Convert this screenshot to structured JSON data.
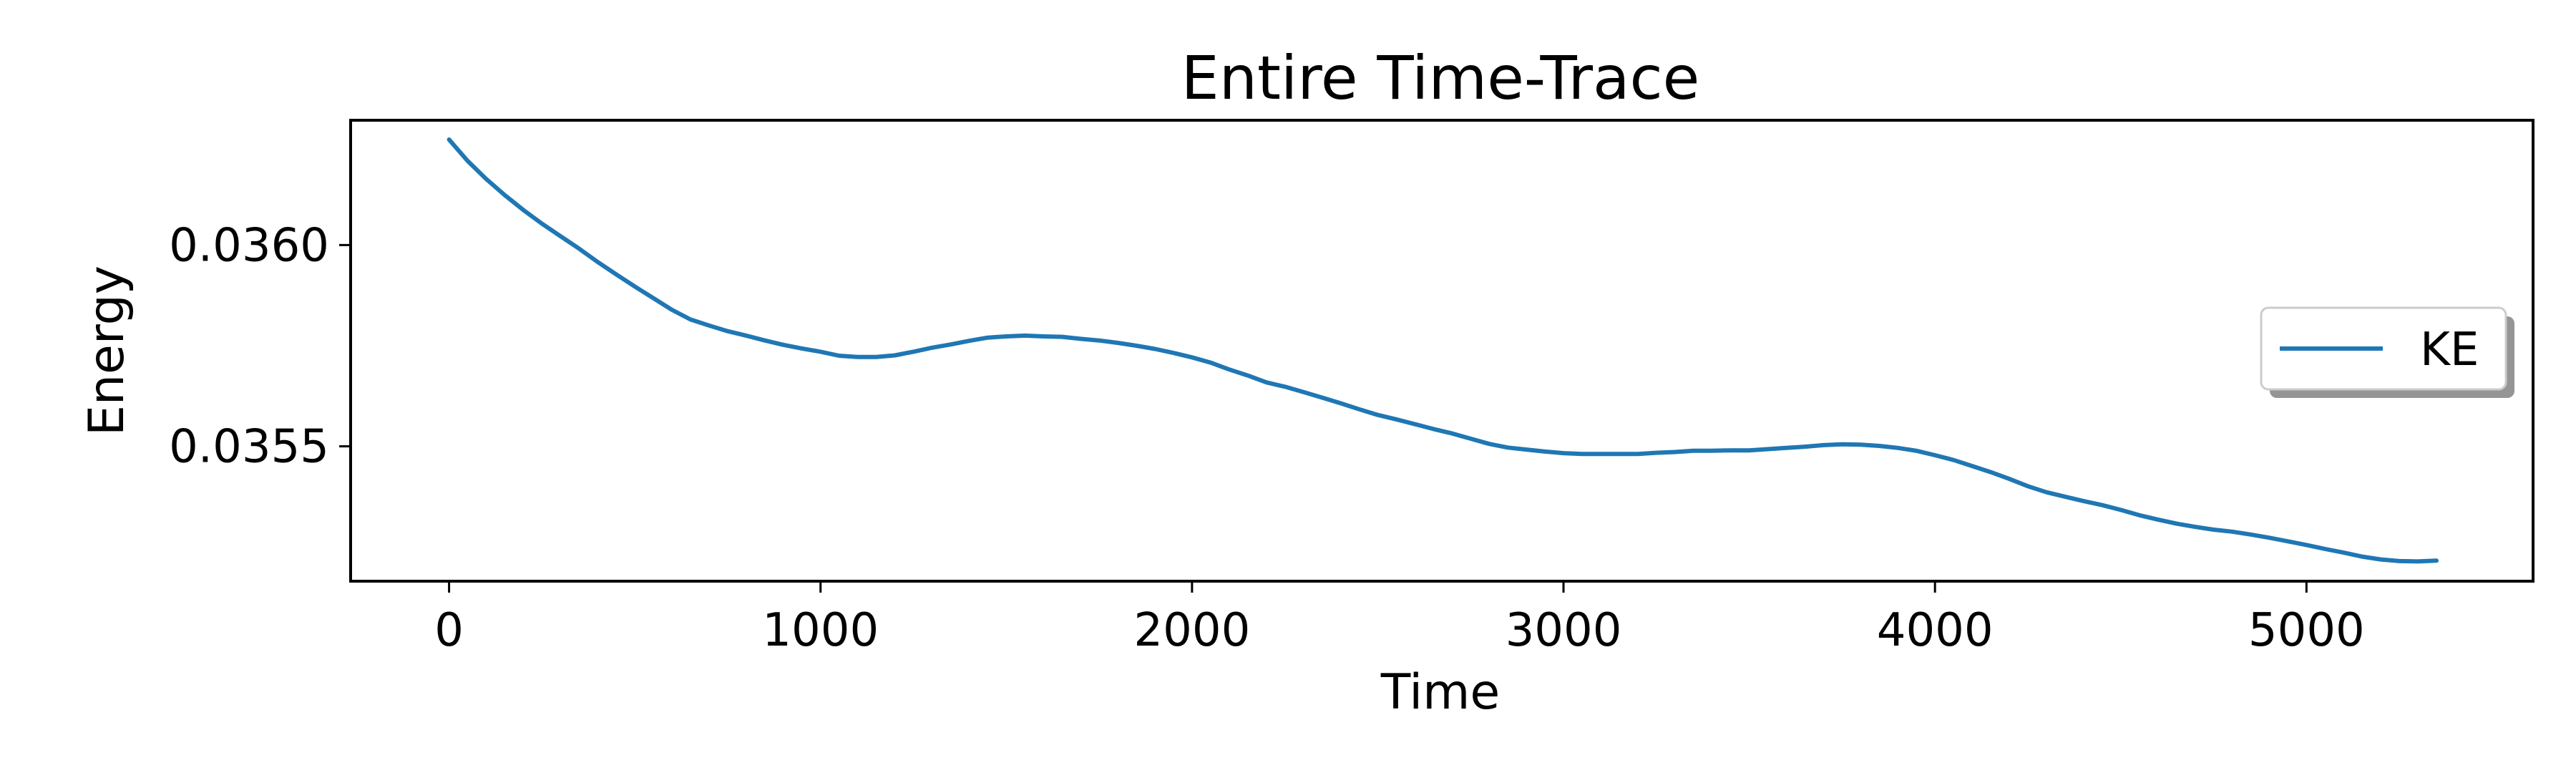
{
  "chart_data": {
    "type": "line",
    "title": "Entire Time-Trace",
    "xlabel": "Time",
    "ylabel": "Energy",
    "xlim": [
      -265,
      5610
    ],
    "ylim": [
      0.035165,
      0.03631
    ],
    "xticks": [
      0,
      1000,
      2000,
      3000,
      4000,
      5000
    ],
    "xtick_labels": [
      "0",
      "1000",
      "2000",
      "3000",
      "4000",
      "5000"
    ],
    "yticks": [
      0.0355,
      0.036
    ],
    "ytick_labels": [
      "0.0355",
      "0.0360"
    ],
    "grid": false,
    "legend": {
      "placement": "center-right",
      "entries": [
        "KE"
      ]
    },
    "colors": {
      "KE": "#1f77b4"
    },
    "series": [
      {
        "name": "KE",
        "x": [
          0,
          50,
          100,
          150,
          200,
          250,
          300,
          350,
          400,
          450,
          500,
          550,
          600,
          650,
          700,
          750,
          800,
          850,
          900,
          950,
          1000,
          1050,
          1100,
          1150,
          1200,
          1250,
          1300,
          1350,
          1400,
          1450,
          1500,
          1550,
          1600,
          1650,
          1700,
          1750,
          1800,
          1850,
          1900,
          1950,
          2000,
          2050,
          2100,
          2150,
          2200,
          2250,
          2300,
          2350,
          2400,
          2450,
          2500,
          2550,
          2600,
          2650,
          2700,
          2750,
          2800,
          2850,
          2900,
          2950,
          3000,
          3050,
          3100,
          3150,
          3200,
          3250,
          3300,
          3350,
          3400,
          3450,
          3500,
          3550,
          3600,
          3650,
          3700,
          3750,
          3800,
          3850,
          3900,
          3950,
          4000,
          4050,
          4100,
          4150,
          4200,
          4250,
          4300,
          4350,
          4400,
          4450,
          4500,
          4550,
          4600,
          4650,
          4700,
          4750,
          4800,
          4850,
          4900,
          4950,
          5000,
          5050,
          5100,
          5150,
          5200,
          5250,
          5300,
          5350
        ],
        "y": [
          0.036262,
          0.036209,
          0.036164,
          0.036124,
          0.036087,
          0.036053,
          0.036022,
          0.035991,
          0.035958,
          0.035927,
          0.035897,
          0.035868,
          0.035839,
          0.035815,
          0.0358,
          0.035786,
          0.035775,
          0.035763,
          0.035752,
          0.035743,
          0.035735,
          0.035725,
          0.035722,
          0.035722,
          0.035726,
          0.035735,
          0.035745,
          0.035753,
          0.035762,
          0.03577,
          0.035773,
          0.035775,
          0.035773,
          0.035772,
          0.035767,
          0.035763,
          0.035757,
          0.03575,
          0.035742,
          0.035732,
          0.035721,
          0.035708,
          0.035691,
          0.035676,
          0.035659,
          0.035648,
          0.035635,
          0.035621,
          0.035607,
          0.035592,
          0.035578,
          0.035567,
          0.035555,
          0.035543,
          0.035532,
          0.035519,
          0.035506,
          0.035497,
          0.035492,
          0.035487,
          0.035483,
          0.035481,
          0.035481,
          0.035481,
          0.035481,
          0.035484,
          0.035486,
          0.035489,
          0.035489,
          0.03549,
          0.03549,
          0.035493,
          0.035496,
          0.035499,
          0.035503,
          0.035505,
          0.035504,
          0.035501,
          0.035496,
          0.035489,
          0.035478,
          0.035466,
          0.035451,
          0.035436,
          0.035419,
          0.035401,
          0.035386,
          0.035375,
          0.035364,
          0.035354,
          0.035342,
          0.035329,
          0.035318,
          0.035308,
          0.0353,
          0.035293,
          0.035288,
          0.035281,
          0.035273,
          0.035264,
          0.035255,
          0.035245,
          0.035236,
          0.035226,
          0.035219,
          0.035215,
          0.035214,
          0.035216
        ]
      }
    ]
  }
}
